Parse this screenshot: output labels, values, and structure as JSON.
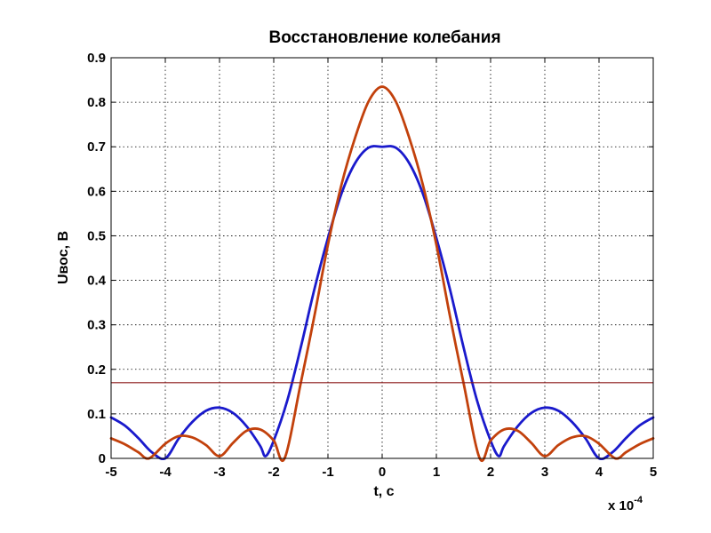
{
  "chart_data": {
    "type": "line",
    "title": "Восстановление колебания",
    "xlabel": "t, c",
    "ylabel": "Uвос, В",
    "x_multiplier_base": "x 10",
    "x_multiplier_exponent": "-4",
    "xlim": [
      -5,
      5
    ],
    "ylim": [
      0,
      0.9
    ],
    "xticks": [
      -5,
      -4,
      -3,
      -2,
      -1,
      0,
      1,
      2,
      3,
      4,
      5
    ],
    "yticks": [
      0,
      0.1,
      0.2,
      0.3,
      0.4,
      0.5,
      0.6,
      0.7,
      0.8,
      0.9
    ],
    "xtick_labels": [
      "-5",
      "-4",
      "-3",
      "-2",
      "-1",
      "0",
      "1",
      "2",
      "3",
      "4",
      "5"
    ],
    "ytick_labels": [
      "0",
      "0.1",
      "0.2",
      "0.3",
      "0.4",
      "0.5",
      "0.6",
      "0.7",
      "0.8",
      "0.9"
    ],
    "grid": true,
    "reference_line": {
      "y": 0.17,
      "color": "#8b1a1a"
    },
    "series": [
      {
        "color": "#1a1acc",
        "x": [
          -5,
          -4.75,
          -4.5,
          -4.25,
          -4.0,
          -3.75,
          -3.5,
          -3.25,
          -3.0,
          -2.75,
          -2.5,
          -2.25,
          -2.15,
          -2.0,
          -1.75,
          -1.5,
          -1.25,
          -1.0,
          -0.75,
          -0.5,
          -0.25,
          0,
          0.25,
          0.5,
          0.75,
          1.0,
          1.25,
          1.5,
          1.75,
          2.0,
          2.15,
          2.25,
          2.5,
          2.75,
          3.0,
          3.25,
          3.5,
          3.75,
          4.0,
          4.25,
          4.5,
          4.75,
          5.0
        ],
        "y": [
          0.092,
          0.074,
          0.046,
          0.014,
          0.0,
          0.045,
          0.082,
          0.107,
          0.114,
          0.102,
          0.072,
          0.028,
          0.005,
          0.04,
          0.13,
          0.25,
          0.38,
          0.495,
          0.595,
          0.663,
          0.698,
          0.7,
          0.698,
          0.663,
          0.595,
          0.495,
          0.38,
          0.25,
          0.13,
          0.04,
          0.005,
          0.028,
          0.072,
          0.102,
          0.114,
          0.107,
          0.082,
          0.045,
          0.0,
          0.014,
          0.046,
          0.074,
          0.092
        ]
      },
      {
        "color": "#c2410c",
        "x": [
          -5,
          -4.75,
          -4.5,
          -4.3,
          -4.0,
          -3.75,
          -3.5,
          -3.25,
          -3.0,
          -2.75,
          -2.5,
          -2.25,
          -2.0,
          -1.8,
          -1.5,
          -1.25,
          -1.0,
          -0.75,
          -0.5,
          -0.25,
          0,
          0.25,
          0.5,
          0.75,
          1.0,
          1.25,
          1.5,
          1.8,
          2.0,
          2.25,
          2.5,
          2.75,
          3.0,
          3.25,
          3.5,
          3.75,
          4.0,
          4.3,
          4.5,
          4.75,
          5.0
        ],
        "y": [
          0.045,
          0.032,
          0.014,
          0.0,
          0.033,
          0.05,
          0.047,
          0.03,
          0.005,
          0.035,
          0.062,
          0.065,
          0.04,
          0.0,
          0.17,
          0.32,
          0.48,
          0.615,
          0.72,
          0.802,
          0.835,
          0.802,
          0.72,
          0.615,
          0.48,
          0.32,
          0.17,
          0.0,
          0.04,
          0.065,
          0.062,
          0.035,
          0.005,
          0.03,
          0.047,
          0.05,
          0.033,
          0.0,
          0.014,
          0.032,
          0.045
        ]
      }
    ]
  }
}
